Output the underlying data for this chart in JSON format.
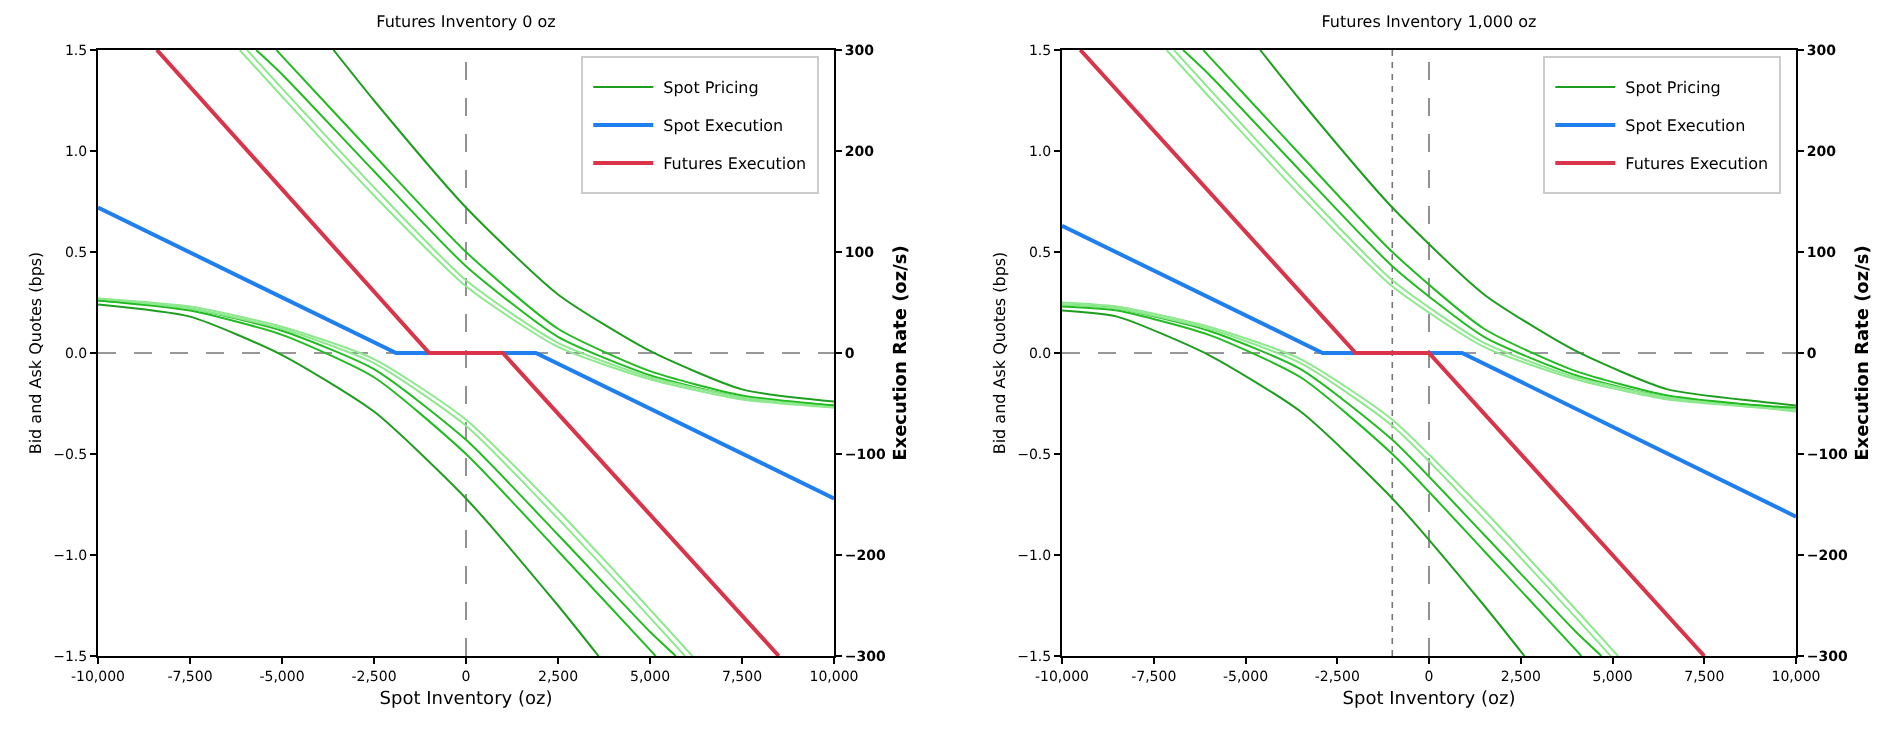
{
  "chart_data": [
    {
      "type": "line",
      "title": "Futures Inventory 0 oz",
      "xlabel": "Spot Inventory (oz)",
      "ylabel": "Bid and Ask Quotes (bps)",
      "y2label": "Execution Rate (oz/s)",
      "xlim": [
        -10000,
        10000
      ],
      "xticks": [
        {
          "value": -10000,
          "label": "-10,000"
        },
        {
          "value": -7500,
          "label": "-7,500"
        },
        {
          "value": -5000,
          "label": "-5,000"
        },
        {
          "value": -2500,
          "label": "-2,500"
        },
        0,
        {
          "value": 2500,
          "label": "2,500"
        },
        {
          "value": 5000,
          "label": "5,000"
        },
        {
          "value": 7500,
          "label": "7,500"
        },
        {
          "value": 10000,
          "label": "10,000"
        }
      ],
      "ylim": [
        -1.5,
        1.5
      ],
      "yticks": [
        {
          "value": -1.5,
          "label": "−1.5"
        },
        {
          "value": -1.0,
          "label": "−1.0"
        },
        {
          "value": -0.5,
          "label": "−0.5"
        },
        {
          "value": 0,
          "label": "0.0"
        },
        {
          "value": 0.5,
          "label": "0.5"
        },
        {
          "value": 1.0,
          "label": "1.0"
        },
        {
          "value": 1.5,
          "label": "1.5"
        }
      ],
      "y2lim": [
        -300,
        300
      ],
      "y2ticks": [
        {
          "value": -300,
          "label": "−300"
        },
        {
          "value": -200,
          "label": "−200"
        },
        {
          "value": -100,
          "label": "−100"
        },
        {
          "value": 0,
          "label": "0"
        },
        {
          "value": 100,
          "label": "100"
        },
        {
          "value": 200,
          "label": "200"
        },
        {
          "value": 300,
          "label": "300"
        }
      ],
      "grid": false,
      "legend": "top right",
      "ref_lines": [
        {
          "axis": "y",
          "value": 0,
          "color": "#777777",
          "line_style": "dashed"
        },
        {
          "axis": "x",
          "value": 0,
          "color": "#777777",
          "line_style": "dashed"
        }
      ],
      "series": [
        {
          "name": "Spot Pricing",
          "color": "#1e9e1e",
          "x": [
            -10000,
            -7500,
            -5000,
            -2500,
            0,
            2500,
            3600
          ],
          "values": [
            0.24,
            0.18,
            -0.01,
            -0.29,
            -0.72,
            -1.25,
            -1.5
          ]
        },
        {
          "name": "Spot Execution",
          "color": "#1f7fef",
          "axis": "y2",
          "x": [
            -10000,
            -1900,
            1900,
            10000
          ],
          "values": [
            144,
            0,
            0,
            -144
          ]
        },
        {
          "name": "Futures Execution",
          "color": "#d9344a",
          "axis": "y2",
          "x": [
            -8400,
            -1000,
            1000,
            8500
          ],
          "values": [
            300,
            0,
            0,
            -300
          ]
        },
        {
          "color": "#22bb22",
          "x": [
            -10000,
            -7500,
            -5000,
            -2500,
            0,
            2500,
            5000,
            5150
          ],
          "values": [
            0.26,
            0.21,
            0.09,
            -0.12,
            -0.5,
            -0.98,
            -1.47,
            -1.5
          ]
        },
        {
          "color": "#22bb22",
          "x": [
            -10000,
            -7500,
            -5000,
            -2500,
            0,
            2500,
            5000,
            5700
          ],
          "values": [
            0.26,
            0.22,
            0.11,
            -0.08,
            -0.43,
            -0.9,
            -1.38,
            -1.5
          ]
        },
        {
          "color": "#8ee88e",
          "x": [
            -10000,
            -7500,
            -5000,
            -2500,
            0,
            2500,
            5000,
            5950
          ],
          "values": [
            0.27,
            0.22,
            0.12,
            -0.05,
            -0.36,
            -0.82,
            -1.31,
            -1.5
          ]
        },
        {
          "color": "#8ee88e",
          "x": [
            -10000,
            -7500,
            -5000,
            -2500,
            0,
            2500,
            5000,
            6150
          ],
          "values": [
            0.27,
            0.23,
            0.13,
            -0.03,
            -0.33,
            -0.78,
            -1.27,
            -1.5
          ]
        },
        {
          "color": "#1e9e1e",
          "x": [
            -3600,
            -2500,
            0,
            2500,
            5000,
            7500,
            10000
          ],
          "values": [
            1.5,
            1.25,
            0.72,
            0.29,
            0.01,
            -0.18,
            -0.24
          ]
        },
        {
          "color": "#22bb22",
          "x": [
            -5150,
            -5000,
            -2500,
            0,
            2500,
            5000,
            7500,
            10000
          ],
          "values": [
            1.5,
            1.47,
            0.98,
            0.5,
            0.12,
            -0.09,
            -0.21,
            -0.26
          ]
        },
        {
          "color": "#22bb22",
          "x": [
            -5700,
            -5000,
            -2500,
            0,
            2500,
            5000,
            7500,
            10000
          ],
          "values": [
            1.5,
            1.38,
            0.9,
            0.43,
            0.08,
            -0.11,
            -0.22,
            -0.26
          ]
        },
        {
          "color": "#8ee88e",
          "x": [
            -5950,
            -5000,
            -2500,
            0,
            2500,
            5000,
            7500,
            10000
          ],
          "values": [
            1.5,
            1.31,
            0.82,
            0.36,
            0.05,
            -0.12,
            -0.22,
            -0.27
          ]
        },
        {
          "color": "#8ee88e",
          "x": [
            -6150,
            -5000,
            -2500,
            0,
            2500,
            5000,
            7500,
            10000
          ],
          "values": [
            1.5,
            1.27,
            0.78,
            0.33,
            0.03,
            -0.13,
            -0.23,
            -0.27
          ]
        }
      ]
    },
    {
      "type": "line",
      "title": "Futures Inventory 1,000 oz",
      "xlabel": "Spot Inventory (oz)",
      "ylabel": "Bid and Ask Quotes (bps)",
      "y2label": "Execution Rate (oz/s)",
      "xlim": [
        -10000,
        10000
      ],
      "xticks": [
        {
          "value": -10000,
          "label": "-10,000"
        },
        {
          "value": -7500,
          "label": "-7,500"
        },
        {
          "value": -5000,
          "label": "-5,000"
        },
        {
          "value": -2500,
          "label": "-2,500"
        },
        0,
        {
          "value": 2500,
          "label": "2,500"
        },
        {
          "value": 5000,
          "label": "5,000"
        },
        {
          "value": 7500,
          "label": "7,500"
        },
        {
          "value": 10000,
          "label": "10,000"
        }
      ],
      "ylim": [
        -1.5,
        1.5
      ],
      "yticks": [
        {
          "value": -1.5,
          "label": "−1.5"
        },
        {
          "value": -1.0,
          "label": "−1.0"
        },
        {
          "value": -0.5,
          "label": "−0.5"
        },
        {
          "value": 0,
          "label": "0.0"
        },
        {
          "value": 0.5,
          "label": "0.5"
        },
        {
          "value": 1.0,
          "label": "1.0"
        },
        {
          "value": 1.5,
          "label": "1.5"
        }
      ],
      "y2lim": [
        -300,
        300
      ],
      "y2ticks": [
        {
          "value": -300,
          "label": "−300"
        },
        {
          "value": -200,
          "label": "−200"
        },
        {
          "value": -100,
          "label": "−100"
        },
        {
          "value": 0,
          "label": "0"
        },
        {
          "value": 100,
          "label": "100"
        },
        {
          "value": 200,
          "label": "200"
        },
        {
          "value": 300,
          "label": "300"
        }
      ],
      "grid": false,
      "legend": "top right",
      "ref_lines": [
        {
          "axis": "y",
          "value": 0,
          "color": "#777777",
          "line_style": "dashed"
        },
        {
          "axis": "x",
          "value": 0,
          "color": "#777777",
          "line_style": "dashed"
        },
        {
          "axis": "x",
          "value": -1000,
          "color": "#777777",
          "line_style": "dotted"
        }
      ],
      "series": [
        {
          "name": "Spot Pricing",
          "color": "#1e9e1e",
          "x": [
            -10000,
            -8500,
            -6000,
            -3500,
            -1000,
            1500,
            2600
          ],
          "values": [
            0.21,
            0.18,
            -0.01,
            -0.29,
            -0.72,
            -1.25,
            -1.5
          ]
        },
        {
          "name": "Spot Execution",
          "color": "#1f7fef",
          "axis": "y2",
          "x": [
            -10000,
            -2900,
            900,
            10000
          ],
          "values": [
            126,
            0,
            0,
            -162
          ]
        },
        {
          "name": "Futures Execution",
          "color": "#d9344a",
          "axis": "y2",
          "x": [
            -9500,
            -2000,
            0,
            7500
          ],
          "values": [
            300,
            0,
            0,
            -300
          ]
        },
        {
          "color": "#22bb22",
          "x": [
            -10000,
            -8500,
            -6000,
            -3500,
            -1000,
            1500,
            4000,
            4150
          ],
          "values": [
            0.23,
            0.21,
            0.09,
            -0.12,
            -0.5,
            -0.98,
            -1.47,
            -1.5
          ]
        },
        {
          "color": "#22bb22",
          "x": [
            -10000,
            -8500,
            -6000,
            -3500,
            -1000,
            1500,
            4000,
            4700
          ],
          "values": [
            0.24,
            0.22,
            0.11,
            -0.08,
            -0.43,
            -0.9,
            -1.38,
            -1.5
          ]
        },
        {
          "color": "#8ee88e",
          "x": [
            -10000,
            -8500,
            -6000,
            -3500,
            -1000,
            1500,
            4000,
            4950
          ],
          "values": [
            0.24,
            0.22,
            0.12,
            -0.05,
            -0.36,
            -0.82,
            -1.31,
            -1.5
          ]
        },
        {
          "color": "#8ee88e",
          "x": [
            -10000,
            -8500,
            -6000,
            -3500,
            -1000,
            1500,
            4000,
            5150
          ],
          "values": [
            0.25,
            0.23,
            0.13,
            -0.03,
            -0.33,
            -0.78,
            -1.27,
            -1.5
          ]
        },
        {
          "color": "#1e9e1e",
          "x": [
            -4600,
            -3500,
            -1000,
            1500,
            4000,
            6500,
            9000,
            10000
          ],
          "values": [
            1.5,
            1.25,
            0.72,
            0.29,
            0.01,
            -0.18,
            -0.24,
            -0.26
          ]
        },
        {
          "color": "#22bb22",
          "x": [
            -6150,
            -6000,
            -3500,
            -1000,
            1500,
            4000,
            6500,
            9000,
            10000
          ],
          "values": [
            1.5,
            1.47,
            0.98,
            0.5,
            0.12,
            -0.09,
            -0.21,
            -0.26,
            -0.27
          ]
        },
        {
          "color": "#22bb22",
          "x": [
            -6700,
            -6000,
            -3500,
            -1000,
            1500,
            4000,
            6500,
            9000,
            10000
          ],
          "values": [
            1.5,
            1.38,
            0.9,
            0.43,
            0.08,
            -0.11,
            -0.22,
            -0.26,
            -0.28
          ]
        },
        {
          "color": "#8ee88e",
          "x": [
            -6950,
            -6000,
            -3500,
            -1000,
            1500,
            4000,
            6500,
            9000,
            10000
          ],
          "values": [
            1.5,
            1.31,
            0.82,
            0.36,
            0.05,
            -0.12,
            -0.22,
            -0.27,
            -0.28
          ]
        },
        {
          "color": "#8ee88e",
          "x": [
            -7150,
            -6000,
            -3500,
            -1000,
            1500,
            4000,
            6500,
            9000,
            10000
          ],
          "values": [
            1.5,
            1.27,
            0.78,
            0.33,
            0.03,
            -0.13,
            -0.23,
            -0.27,
            -0.29
          ]
        }
      ]
    }
  ]
}
